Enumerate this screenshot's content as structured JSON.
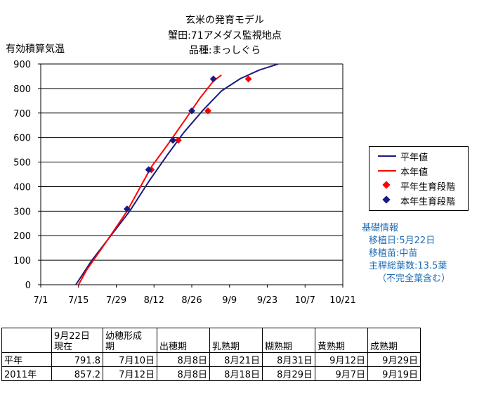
{
  "title_lines": [
    "玄米の発育モデル",
    "蟹田:71アメダス監視地点",
    "品種:まっしぐら"
  ],
  "colors": {
    "heinen": "#1a1a80",
    "honnen": "#ff0000",
    "info": "#1f6db5"
  },
  "chart_data": {
    "type": "line",
    "ylabel": "有効積算気温",
    "ylim": [
      0,
      900
    ],
    "yticks": [
      "0",
      "100",
      "200",
      "300",
      "400",
      "500",
      "600",
      "700",
      "800",
      "900"
    ],
    "xticks": [
      "7/1",
      "7/15",
      "7/29",
      "8/12",
      "8/26",
      "9/9",
      "9/23",
      "10/7",
      "10/21"
    ],
    "grid": "horizontal",
    "legend_position": "right",
    "series": [
      {
        "name": "平年値",
        "style": "line",
        "color": "#1a1a80",
        "points": [
          [
            13,
            0
          ],
          [
            19,
            100
          ],
          [
            26,
            200
          ],
          [
            33,
            300
          ],
          [
            40,
            420
          ],
          [
            47,
            530
          ],
          [
            53,
            620
          ],
          [
            60,
            710
          ],
          [
            67,
            790
          ],
          [
            74,
            840
          ],
          [
            81,
            875
          ],
          [
            88,
            900
          ]
        ]
      },
      {
        "name": "本年値",
        "style": "line",
        "color": "#ff0000",
        "points": [
          [
            14,
            0
          ],
          [
            17,
            60
          ],
          [
            24,
            170
          ],
          [
            32,
            300
          ],
          [
            37,
            400
          ],
          [
            41,
            480
          ],
          [
            47,
            570
          ],
          [
            54,
            680
          ],
          [
            59,
            760
          ],
          [
            64,
            830
          ],
          [
            67,
            855
          ]
        ]
      },
      {
        "name": "平年生育段階",
        "style": "marker",
        "color": "#ff0000",
        "points": [
          [
            41,
            469
          ],
          [
            51,
            589
          ],
          [
            62,
            709
          ],
          [
            77,
            839
          ]
        ]
      },
      {
        "name": "本年生育段階",
        "style": "marker",
        "color": "#1a1a80",
        "points": [
          [
            32,
            309
          ],
          [
            40,
            469
          ],
          [
            49,
            589
          ],
          [
            56,
            709
          ],
          [
            64,
            839
          ]
        ]
      }
    ]
  },
  "info": {
    "heading": "基礎情報",
    "lines": [
      "移植日:5月22日",
      "移植苗:中苗",
      "主稈総葉数:13.5葉",
      "（不完全葉含む）"
    ]
  },
  "table": {
    "header": [
      "",
      "9月22日\n現在",
      "幼穂形成\n期",
      "出穂期",
      "乳熟期",
      "糊熟期",
      "黄熟期",
      "成熟期"
    ],
    "rows": [
      [
        "平年",
        "791.8",
        "7月10日",
        "8月8日",
        "8月21日",
        "8月31日",
        "9月12日",
        "9月29日"
      ],
      [
        "2011年",
        "857.2",
        "7月12日",
        "8月8日",
        "8月18日",
        "8月29日",
        "9月7日",
        "9月19日"
      ]
    ]
  }
}
